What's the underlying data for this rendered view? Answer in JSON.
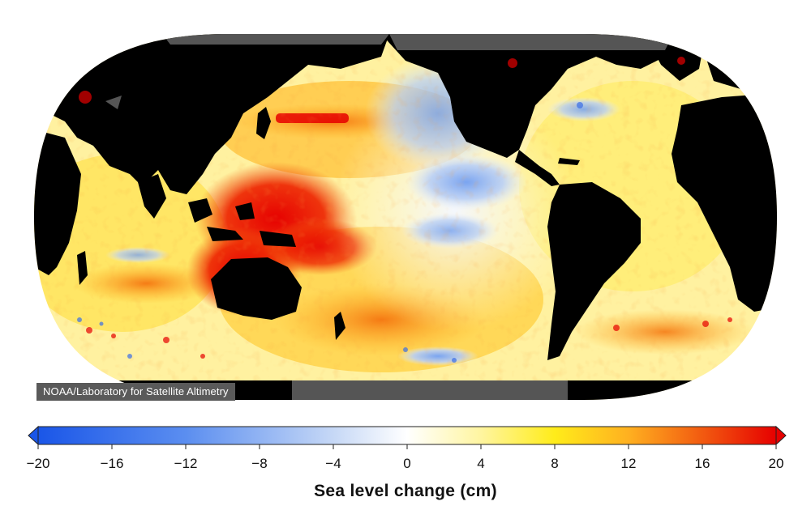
{
  "map": {
    "projection": "robinson-style-world",
    "ocean_field": "sea-level-change",
    "credit": "NOAA/Laboratory for Satellite Altimetry"
  },
  "colorbar": {
    "title": "Sea level change (cm)",
    "min": -20,
    "max": 20,
    "ticks": [
      "−20",
      "−16",
      "−12",
      "−8",
      "−4",
      "0",
      "4",
      "8",
      "12",
      "16",
      "20"
    ],
    "tick_values": [
      -20,
      -16,
      -12,
      -8,
      -4,
      0,
      4,
      8,
      12,
      16,
      20
    ],
    "colors": {
      "minus20": "#1a56e8",
      "minus12": "#5b8ef0",
      "minus4": "#c6d8f6",
      "zero": "#ffffff",
      "plus4": "#fff5a0",
      "plus8": "#ffec1a",
      "plus12": "#ffb020",
      "plus16": "#f25a10",
      "plus20": "#e60000"
    },
    "extend": "both"
  },
  "land_color": "#000000",
  "ice_color": "#555555"
}
